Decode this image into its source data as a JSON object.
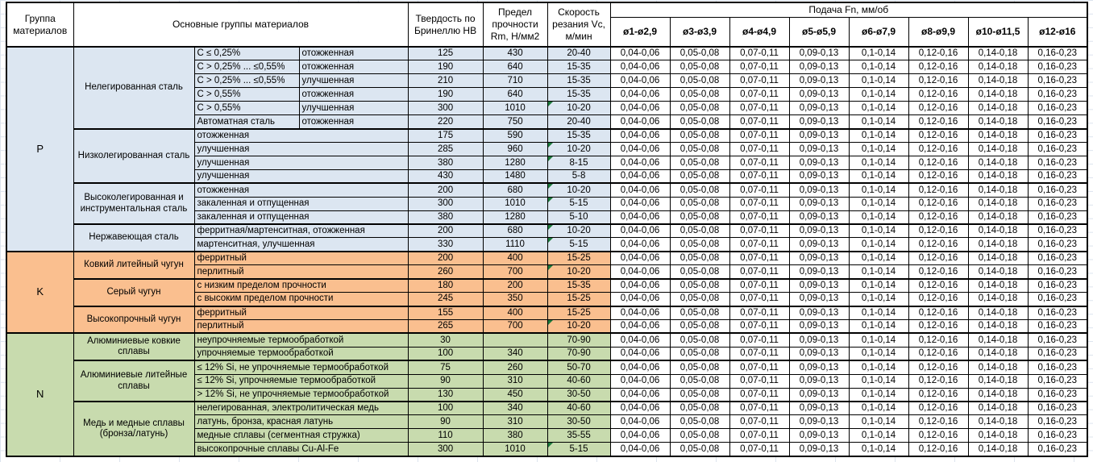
{
  "header": {
    "col_group": "Группа материалов",
    "col_main_groups": "Основные группы материалов",
    "col_hardness": "Твердость по Бринеллю HB",
    "col_strength": "Предел прочности Rm, Н/мм2",
    "col_speed": "Скорость резания Vc, м/мин",
    "col_feed": "Подача Fn, мм/об",
    "feed_diameters": [
      "ø1-ø2,9",
      "ø3-ø3,9",
      "ø4-ø4,9",
      "ø5-ø5,9",
      "ø6-ø7,9",
      "ø8-ø9,9",
      "ø10-ø11,5",
      "ø12-ø16"
    ]
  },
  "feed_values": [
    "0,04-0,06",
    "0,05-0,08",
    "0,07-0,11",
    "0,09-0,13",
    "0,1-0,14",
    "0,12-0,16",
    "0,14-0,18",
    "0,16-0,23"
  ],
  "colors": {
    "group_p": "#dce6f1",
    "group_k": "#fabf8f",
    "group_n": "#c8dbae",
    "error_indicator": "#1d7a3c"
  },
  "groups": [
    {
      "letter": "P",
      "color": "#dce6f1",
      "subgroups": [
        {
          "name": "Нелегированная сталь",
          "rows": [
            {
              "condition": "C ≤ 0,25%",
              "state": "отожженная",
              "hb": "125",
              "rm": "430",
              "vc": "20-40"
            },
            {
              "condition": "C > 0,25% ... ≤0,55%",
              "state": "отожженная",
              "hb": "190",
              "rm": "640",
              "vc": "15-35"
            },
            {
              "condition": "C > 0,25% ... ≤0,55%",
              "state": "улучшенная",
              "hb": "210",
              "rm": "710",
              "vc": "15-35"
            },
            {
              "condition": "C > 0,55%",
              "state": "отожженная",
              "hb": "190",
              "rm": "640",
              "vc": "15-35"
            },
            {
              "condition": "C > 0,55%",
              "state": "улучшенная",
              "hb": "300",
              "rm": "1010",
              "vc": "10-20",
              "flag": true
            },
            {
              "condition": "Автоматная сталь",
              "state": "отожженная",
              "hb": "220",
              "rm": "750",
              "vc": "20-40"
            }
          ]
        },
        {
          "name": "Низколегированная сталь",
          "rows": [
            {
              "condition": "отожженная",
              "state": null,
              "hb": "175",
              "rm": "590",
              "vc": "15-35"
            },
            {
              "condition": "улучшенная",
              "state": null,
              "hb": "285",
              "rm": "960",
              "vc": "10-20",
              "flag": true
            },
            {
              "condition": "улучшенная",
              "state": null,
              "hb": "380",
              "rm": "1280",
              "vc": "8-15",
              "flag": true
            },
            {
              "condition": "улучшенная",
              "state": null,
              "hb": "430",
              "rm": "1480",
              "vc": "5-8"
            }
          ]
        },
        {
          "name": "Высоколегированная и инструментальная сталь",
          "rows": [
            {
              "condition": "отожженная",
              "state": null,
              "hb": "200",
              "rm": "680",
              "vc": "10-20",
              "flag": true
            },
            {
              "condition": "закаленная и отпущенная",
              "state": null,
              "hb": "300",
              "rm": "1010",
              "vc": "5-15",
              "flag": true
            },
            {
              "condition": "закаленная и отпущенная",
              "state": null,
              "hb": "380",
              "rm": "1280",
              "vc": "5-10"
            }
          ]
        },
        {
          "name": "Нержавеющая сталь",
          "rows": [
            {
              "condition": "ферритная/мартенситная, отожженная",
              "state": null,
              "hb": "200",
              "rm": "680",
              "vc": "10-20",
              "flag": true
            },
            {
              "condition": "мартенситная, улучшенная",
              "state": null,
              "hb": "330",
              "rm": "1110",
              "vc": "5-15",
              "flag": true
            }
          ]
        }
      ]
    },
    {
      "letter": "K",
      "color": "#fabf8f",
      "subgroups": [
        {
          "name": "Ковкий литейный чугун",
          "rows": [
            {
              "condition": "ферритный",
              "state": null,
              "hb": "200",
              "rm": "400",
              "vc": "15-25"
            },
            {
              "condition": "перлитный",
              "state": null,
              "hb": "260",
              "rm": "700",
              "vc": "10-20",
              "flag": true
            }
          ]
        },
        {
          "name": "Серый чугун",
          "rows": [
            {
              "condition": "с низким пределом прочности",
              "state": null,
              "hb": "180",
              "rm": "200",
              "vc": "15-35"
            },
            {
              "condition": "с высоким пределом прочности",
              "state": null,
              "hb": "245",
              "rm": "350",
              "vc": "15-25"
            }
          ]
        },
        {
          "name": "Высокопрочный чугун",
          "rows": [
            {
              "condition": "ферритный",
              "state": null,
              "hb": "155",
              "rm": "400",
              "vc": "15-25"
            },
            {
              "condition": "перлитный",
              "state": null,
              "hb": "265",
              "rm": "700",
              "vc": "10-20",
              "flag": true
            }
          ]
        }
      ]
    },
    {
      "letter": "N",
      "color": "#c8dbae",
      "subgroups": [
        {
          "name": "Алюминиевые ковкие сплавы",
          "rows": [
            {
              "condition": "неупрочняемые термообработкой",
              "state": null,
              "hb": "30",
              "rm": "",
              "vc": "70-90"
            },
            {
              "condition": "упрочняемые термообработкой",
              "state": null,
              "hb": "100",
              "rm": "340",
              "vc": "70-90"
            }
          ]
        },
        {
          "name": "Алюминиевые литейные сплавы",
          "rows": [
            {
              "condition": "≤ 12% Si, не упрочняемые термообработкой",
              "state": null,
              "hb": "75",
              "rm": "260",
              "vc": "50-70"
            },
            {
              "condition": "≤ 12% Si, упрочняемые термообработкой",
              "state": null,
              "hb": "90",
              "rm": "310",
              "vc": "40-60"
            },
            {
              "condition": "> 12% Si, не упрочняемые термообработкой",
              "state": null,
              "hb": "130",
              "rm": "450",
              "vc": "30-50"
            }
          ]
        },
        {
          "name": "Медь и медные сплавы (бронза/латунь)",
          "rows": [
            {
              "condition": "нелегированная, электролитическая медь",
              "state": null,
              "hb": "100",
              "rm": "340",
              "vc": "40-60"
            },
            {
              "condition": "латунь, бронза, красная латунь",
              "state": null,
              "hb": "90",
              "rm": "310",
              "vc": "30-50"
            },
            {
              "condition": "медные сплавы (сегментная стружка)",
              "state": null,
              "hb": "110",
              "rm": "380",
              "vc": "35-55"
            },
            {
              "condition": "высокопрочные сплавы Cu-Al-Fe",
              "state": null,
              "hb": "300",
              "rm": "1010",
              "vc": "5-15",
              "flag": true
            }
          ]
        }
      ]
    }
  ]
}
